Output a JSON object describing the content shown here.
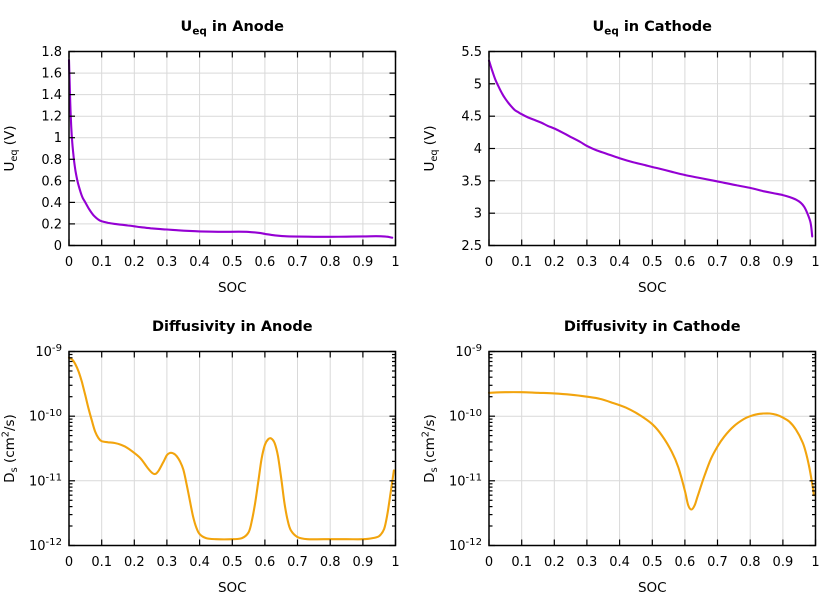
{
  "figure": {
    "layout": "2x2-multiplot",
    "background": "#ffffff"
  },
  "colors": {
    "ocp_curve": "#9400d3",
    "diffusivity_curve": "#f2a40d",
    "grid": "#d9d9d9",
    "axis": "#000000",
    "text": "#000000",
    "background": "#ffffff"
  },
  "chart_data": [
    {
      "type": "line",
      "id": "ueq-anode",
      "title_text": "U_eq in Anode",
      "title_segments": [
        {
          "t": "U"
        },
        {
          "t": "eq",
          "s": "sub"
        },
        {
          "t": " in Anode"
        }
      ],
      "xlabel": "SOC",
      "ylabel_text": "U_eq (V)",
      "ylabel_segments": [
        {
          "t": "U"
        },
        {
          "t": "eq",
          "s": "sub"
        },
        {
          "t": " (V)"
        }
      ],
      "x_range": [
        0,
        1
      ],
      "y_range": [
        0,
        1.8
      ],
      "y_scale": "linear",
      "grid": true,
      "legend": "none",
      "x_ticks": {
        "values": [
          0,
          0.1,
          0.2,
          0.3,
          0.4,
          0.5,
          0.6,
          0.7,
          0.8,
          0.9,
          1
        ],
        "labels": [
          "0",
          "0.1",
          "0.2",
          "0.3",
          "0.4",
          "0.5",
          "0.6",
          "0.7",
          "0.8",
          "0.9",
          "1"
        ]
      },
      "y_ticks": {
        "values": [
          0,
          0.2,
          0.4,
          0.6,
          0.8,
          1,
          1.2,
          1.4,
          1.6,
          1.8
        ],
        "labels": [
          "0",
          "0.2",
          "0.4",
          "0.6",
          "0.8",
          "1",
          "1.2",
          "1.4",
          "1.6",
          "1.8"
        ]
      },
      "line_color": "#9400d3",
      "series": [
        {
          "name": "U_eq anode",
          "x": [
            0,
            0.003,
            0.006,
            0.01,
            0.015,
            0.02,
            0.025,
            0.03,
            0.04,
            0.05,
            0.06,
            0.07,
            0.08,
            0.09,
            0.1,
            0.12,
            0.14,
            0.16,
            0.18,
            0.2,
            0.22,
            0.25,
            0.28,
            0.3,
            0.33,
            0.36,
            0.4,
            0.44,
            0.48,
            0.52,
            0.55,
            0.58,
            0.6,
            0.62,
            0.64,
            0.66,
            0.7,
            0.75,
            0.8,
            0.85,
            0.9,
            0.94,
            0.97,
            0.99
          ],
          "y": [
            1.72,
            1.4,
            1.15,
            0.95,
            0.8,
            0.69,
            0.61,
            0.55,
            0.455,
            0.4,
            0.345,
            0.3,
            0.265,
            0.24,
            0.225,
            0.21,
            0.2,
            0.193,
            0.186,
            0.178,
            0.17,
            0.16,
            0.152,
            0.148,
            0.142,
            0.136,
            0.131,
            0.128,
            0.127,
            0.128,
            0.126,
            0.118,
            0.108,
            0.098,
            0.091,
            0.086,
            0.083,
            0.081,
            0.081,
            0.082,
            0.084,
            0.086,
            0.083,
            0.072
          ]
        }
      ]
    },
    {
      "type": "line",
      "id": "ueq-cathode",
      "title_text": "U_eq in Cathode",
      "title_segments": [
        {
          "t": "U"
        },
        {
          "t": "eq",
          "s": "sub"
        },
        {
          "t": " in Cathode"
        }
      ],
      "xlabel": "SOC",
      "ylabel_text": "U_eq (V)",
      "ylabel_segments": [
        {
          "t": "U"
        },
        {
          "t": "eq",
          "s": "sub"
        },
        {
          "t": " (V)"
        }
      ],
      "x_range": [
        0,
        1
      ],
      "y_range": [
        2.5,
        5.5
      ],
      "y_scale": "linear",
      "grid": true,
      "legend": "none",
      "x_ticks": {
        "values": [
          0,
          0.1,
          0.2,
          0.3,
          0.4,
          0.5,
          0.6,
          0.7,
          0.8,
          0.9,
          1
        ],
        "labels": [
          "0",
          "0.1",
          "0.2",
          "0.3",
          "0.4",
          "0.5",
          "0.6",
          "0.7",
          "0.8",
          "0.9",
          "1"
        ]
      },
      "y_ticks": {
        "values": [
          2.5,
          3,
          3.5,
          4,
          4.5,
          5,
          5.5
        ],
        "labels": [
          "2.5",
          "3",
          "3.5",
          "4",
          "4.5",
          "5",
          "5.5"
        ]
      },
      "line_color": "#9400d3",
      "series": [
        {
          "name": "U_eq cathode",
          "x": [
            0,
            0.005,
            0.01,
            0.02,
            0.03,
            0.04,
            0.05,
            0.06,
            0.07,
            0.08,
            0.09,
            0.1,
            0.12,
            0.14,
            0.16,
            0.18,
            0.2,
            0.22,
            0.25,
            0.28,
            0.3,
            0.33,
            0.36,
            0.4,
            0.44,
            0.48,
            0.52,
            0.56,
            0.6,
            0.64,
            0.68,
            0.72,
            0.76,
            0.8,
            0.84,
            0.87,
            0.9,
            0.92,
            0.94,
            0.955,
            0.965,
            0.975,
            0.985,
            0.99
          ],
          "y": [
            5.36,
            5.28,
            5.2,
            5.06,
            4.95,
            4.85,
            4.77,
            4.7,
            4.64,
            4.59,
            4.56,
            4.53,
            4.48,
            4.44,
            4.4,
            4.35,
            4.31,
            4.26,
            4.18,
            4.1,
            4.04,
            3.97,
            3.92,
            3.85,
            3.79,
            3.74,
            3.69,
            3.64,
            3.59,
            3.55,
            3.51,
            3.47,
            3.43,
            3.39,
            3.34,
            3.31,
            3.28,
            3.25,
            3.21,
            3.16,
            3.1,
            3.0,
            2.85,
            2.64
          ]
        }
      ]
    },
    {
      "type": "line",
      "id": "diffusivity-anode",
      "title_text": "Diffusivity in Anode",
      "title_segments": [
        {
          "t": "Diffusivity in Anode"
        }
      ],
      "xlabel": "SOC",
      "ylabel_text": "D_s (cm^2/s)",
      "ylabel_segments": [
        {
          "t": "D"
        },
        {
          "t": "s",
          "s": "sub"
        },
        {
          "t": " (cm"
        },
        {
          "t": "2",
          "s": "sup"
        },
        {
          "t": "/s)"
        }
      ],
      "x_range": [
        0,
        1
      ],
      "y_range": [
        1e-12,
        1e-09
      ],
      "y_scale": "log",
      "grid": true,
      "legend": "none",
      "x_ticks": {
        "values": [
          0,
          0.1,
          0.2,
          0.3,
          0.4,
          0.5,
          0.6,
          0.7,
          0.8,
          0.9,
          1
        ],
        "labels": [
          "0",
          "0.1",
          "0.2",
          "0.3",
          "0.4",
          "0.5",
          "0.6",
          "0.7",
          "0.8",
          "0.9",
          "1"
        ]
      },
      "y_ticks": {
        "values": [
          1e-12,
          1e-11,
          1e-10,
          1e-09
        ],
        "labels": [
          "10^-12",
          "10^-11",
          "10^-10",
          "10^-9"
        ]
      },
      "line_color": "#f2a40d",
      "series": [
        {
          "name": "D_s anode",
          "x": [
            0,
            0.01,
            0.02,
            0.03,
            0.04,
            0.05,
            0.06,
            0.07,
            0.08,
            0.09,
            0.1,
            0.12,
            0.14,
            0.16,
            0.18,
            0.2,
            0.22,
            0.24,
            0.255,
            0.265,
            0.275,
            0.29,
            0.3,
            0.31,
            0.32,
            0.33,
            0.34,
            0.35,
            0.36,
            0.37,
            0.38,
            0.39,
            0.4,
            0.42,
            0.45,
            0.5,
            0.53,
            0.55,
            0.56,
            0.57,
            0.58,
            0.59,
            0.6,
            0.61,
            0.62,
            0.63,
            0.64,
            0.65,
            0.66,
            0.67,
            0.68,
            0.7,
            0.73,
            0.78,
            0.85,
            0.9,
            0.93,
            0.95,
            0.965,
            0.975,
            0.985,
            0.995
          ],
          "y": [
            8e-10,
            7.5e-10,
            6.3e-10,
            4.8e-10,
            3.3e-10,
            2.1e-10,
            1.3e-10,
            8.5e-11,
            5.8e-11,
            4.6e-11,
            4.1e-11,
            3.95e-11,
            3.85e-11,
            3.6e-11,
            3.2e-11,
            2.7e-11,
            2.2e-11,
            1.6e-11,
            1.32e-11,
            1.28e-11,
            1.45e-11,
            2e-11,
            2.5e-11,
            2.7e-11,
            2.65e-11,
            2.4e-11,
            2e-11,
            1.5e-11,
            9e-12,
            5e-12,
            2.8e-12,
            1.9e-12,
            1.5e-12,
            1.3e-12,
            1.25e-12,
            1.25e-12,
            1.3e-12,
            1.6e-12,
            2.4e-12,
            4.5e-12,
            1e-11,
            2.2e-11,
            3.6e-11,
            4.4e-11,
            4.5e-11,
            3.8e-11,
            2.4e-11,
            1.1e-11,
            4.5e-12,
            2.4e-12,
            1.7e-12,
            1.35e-12,
            1.25e-12,
            1.25e-12,
            1.25e-12,
            1.25e-12,
            1.3e-12,
            1.4e-12,
            1.8e-12,
            3e-12,
            6.5e-12,
            1.45e-11
          ]
        }
      ]
    },
    {
      "type": "line",
      "id": "diffusivity-cathode",
      "title_text": "Diffusivity in Cathode",
      "title_segments": [
        {
          "t": "Diffusivity in Cathode"
        }
      ],
      "xlabel": "SOC",
      "ylabel_text": "D_s (cm^2/s)",
      "ylabel_segments": [
        {
          "t": "D"
        },
        {
          "t": "s",
          "s": "sub"
        },
        {
          "t": " (cm"
        },
        {
          "t": "2",
          "s": "sup"
        },
        {
          "t": "/s)"
        }
      ],
      "x_range": [
        0,
        1
      ],
      "y_range": [
        1e-12,
        1e-09
      ],
      "y_scale": "log",
      "grid": true,
      "legend": "none",
      "x_ticks": {
        "values": [
          0,
          0.1,
          0.2,
          0.3,
          0.4,
          0.5,
          0.6,
          0.7,
          0.8,
          0.9,
          1
        ],
        "labels": [
          "0",
          "0.1",
          "0.2",
          "0.3",
          "0.4",
          "0.5",
          "0.6",
          "0.7",
          "0.8",
          "0.9",
          "1"
        ]
      },
      "y_ticks": {
        "values": [
          1e-12,
          1e-11,
          1e-10,
          1e-09
        ],
        "labels": [
          "10^-12",
          "10^-11",
          "10^-10",
          "10^-9"
        ]
      },
      "line_color": "#f2a40d",
      "series": [
        {
          "name": "D_s cathode",
          "x": [
            0,
            0.05,
            0.1,
            0.15,
            0.2,
            0.25,
            0.3,
            0.34,
            0.38,
            0.42,
            0.46,
            0.5,
            0.53,
            0.56,
            0.58,
            0.6,
            0.61,
            0.62,
            0.63,
            0.64,
            0.66,
            0.68,
            0.7,
            0.72,
            0.75,
            0.78,
            0.8,
            0.82,
            0.84,
            0.86,
            0.88,
            0.9,
            0.92,
            0.94,
            0.96,
            0.97,
            0.98,
            0.99,
            0.995
          ],
          "y": [
            2.3e-10,
            2.35e-10,
            2.35e-10,
            2.3e-10,
            2.25e-10,
            2.15e-10,
            2e-10,
            1.85e-10,
            1.6e-10,
            1.35e-10,
            1.05e-10,
            7.5e-11,
            5e-11,
            2.8e-11,
            1.6e-11,
            7e-12,
            4.2e-12,
            3.6e-12,
            4.2e-12,
            6e-12,
            1.2e-11,
            2.2e-11,
            3.4e-11,
            4.8e-11,
            7e-11,
            9e-11,
            1e-10,
            1.07e-10,
            1.1e-10,
            1.1e-10,
            1.05e-10,
            9.5e-11,
            8.2e-11,
            6.2e-11,
            4e-11,
            2.8e-11,
            1.7e-11,
            9e-12,
            6e-12
          ]
        }
      ]
    }
  ]
}
